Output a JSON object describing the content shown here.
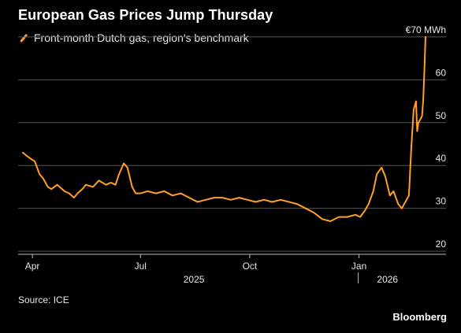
{
  "header": {
    "title": "European Gas Prices Jump Thursday",
    "legend_label": "Front-month Dutch gas, region's benchmark"
  },
  "footer": {
    "source": "Source: ICE",
    "brand": "Bloomberg"
  },
  "colors": {
    "background": "#000000",
    "line": "#ff9f27",
    "grid": "#555555",
    "text": "#e6e6e6"
  },
  "chart_data": {
    "type": "line",
    "title": "European Gas Prices Jump Thursday",
    "xlabel": "",
    "ylabel": "",
    "unit_label": "€70 MWh",
    "ylim": [
      18,
      72
    ],
    "y_ticks": [
      20,
      30,
      40,
      50,
      60,
      70
    ],
    "x_range": [
      "2025-03-20",
      "2026-02-26"
    ],
    "x_ticks": [
      {
        "date": "2025-04-01",
        "label": "Apr"
      },
      {
        "date": "2025-07-01",
        "label": "Jul"
      },
      {
        "date": "2025-10-01",
        "label": "Oct"
      },
      {
        "date": "2026-01-01",
        "label": "Jan"
      }
    ],
    "year_labels": [
      {
        "date": "2025-08-15",
        "label": "2025"
      },
      {
        "date": "2026-01-25",
        "label": "2026"
      }
    ],
    "grid": true,
    "series": [
      {
        "name": "Front-month Dutch gas, region's benchmark",
        "points": [
          [
            "2025-03-24",
            43.0
          ],
          [
            "2025-03-27",
            42.3
          ],
          [
            "2025-03-31",
            41.5
          ],
          [
            "2025-04-03",
            41.0
          ],
          [
            "2025-04-07",
            38.0
          ],
          [
            "2025-04-10",
            37.0
          ],
          [
            "2025-04-14",
            35.0
          ],
          [
            "2025-04-17",
            34.5
          ],
          [
            "2025-04-22",
            35.5
          ],
          [
            "2025-04-28",
            34.0
          ],
          [
            "2025-05-02",
            33.5
          ],
          [
            "2025-05-06",
            32.5
          ],
          [
            "2025-05-09",
            33.5
          ],
          [
            "2025-05-13",
            34.5
          ],
          [
            "2025-05-16",
            35.5
          ],
          [
            "2025-05-22",
            35.0
          ],
          [
            "2025-05-27",
            36.5
          ],
          [
            "2025-06-02",
            35.5
          ],
          [
            "2025-06-06",
            36.0
          ],
          [
            "2025-06-10",
            35.5
          ],
          [
            "2025-06-13",
            38.0
          ],
          [
            "2025-06-17",
            40.5
          ],
          [
            "2025-06-20",
            39.5
          ],
          [
            "2025-06-24",
            35.0
          ],
          [
            "2025-06-27",
            33.5
          ],
          [
            "2025-07-01",
            33.5
          ],
          [
            "2025-07-07",
            34.0
          ],
          [
            "2025-07-14",
            33.5
          ],
          [
            "2025-07-21",
            34.0
          ],
          [
            "2025-07-28",
            33.0
          ],
          [
            "2025-08-04",
            33.5
          ],
          [
            "2025-08-11",
            32.5
          ],
          [
            "2025-08-18",
            31.5
          ],
          [
            "2025-08-25",
            32.0
          ],
          [
            "2025-09-01",
            32.5
          ],
          [
            "2025-09-08",
            32.5
          ],
          [
            "2025-09-15",
            32.0
          ],
          [
            "2025-09-22",
            32.5
          ],
          [
            "2025-09-29",
            32.0
          ],
          [
            "2025-10-06",
            31.5
          ],
          [
            "2025-10-13",
            32.0
          ],
          [
            "2025-10-20",
            31.5
          ],
          [
            "2025-10-27",
            32.0
          ],
          [
            "2025-11-03",
            31.5
          ],
          [
            "2025-11-10",
            31.0
          ],
          [
            "2025-11-17",
            30.0
          ],
          [
            "2025-11-24",
            29.0
          ],
          [
            "2025-12-01",
            27.5
          ],
          [
            "2025-12-08",
            27.0
          ],
          [
            "2025-12-15",
            28.0
          ],
          [
            "2025-12-22",
            28.0
          ],
          [
            "2025-12-29",
            28.5
          ],
          [
            "2026-01-02",
            28.0
          ],
          [
            "2026-01-06",
            29.5
          ],
          [
            "2026-01-09",
            31.0
          ],
          [
            "2026-01-13",
            34.0
          ],
          [
            "2026-01-16",
            38.0
          ],
          [
            "2026-01-20",
            39.5
          ],
          [
            "2026-01-23",
            37.5
          ],
          [
            "2026-01-27",
            33.0
          ],
          [
            "2026-01-30",
            34.0
          ],
          [
            "2026-02-03",
            31.0
          ],
          [
            "2026-02-06",
            30.0
          ],
          [
            "2026-02-09",
            31.5
          ],
          [
            "2026-02-12",
            33.0
          ],
          [
            "2026-02-14",
            44.0
          ],
          [
            "2026-02-16",
            53.0
          ],
          [
            "2026-02-18",
            55.0
          ],
          [
            "2026-02-19",
            48.0
          ],
          [
            "2026-02-20",
            50.0
          ],
          [
            "2026-02-23",
            51.5
          ],
          [
            "2026-02-24",
            55.0
          ],
          [
            "2026-02-25",
            62.0
          ],
          [
            "2026-02-26",
            70.0
          ]
        ]
      }
    ]
  }
}
